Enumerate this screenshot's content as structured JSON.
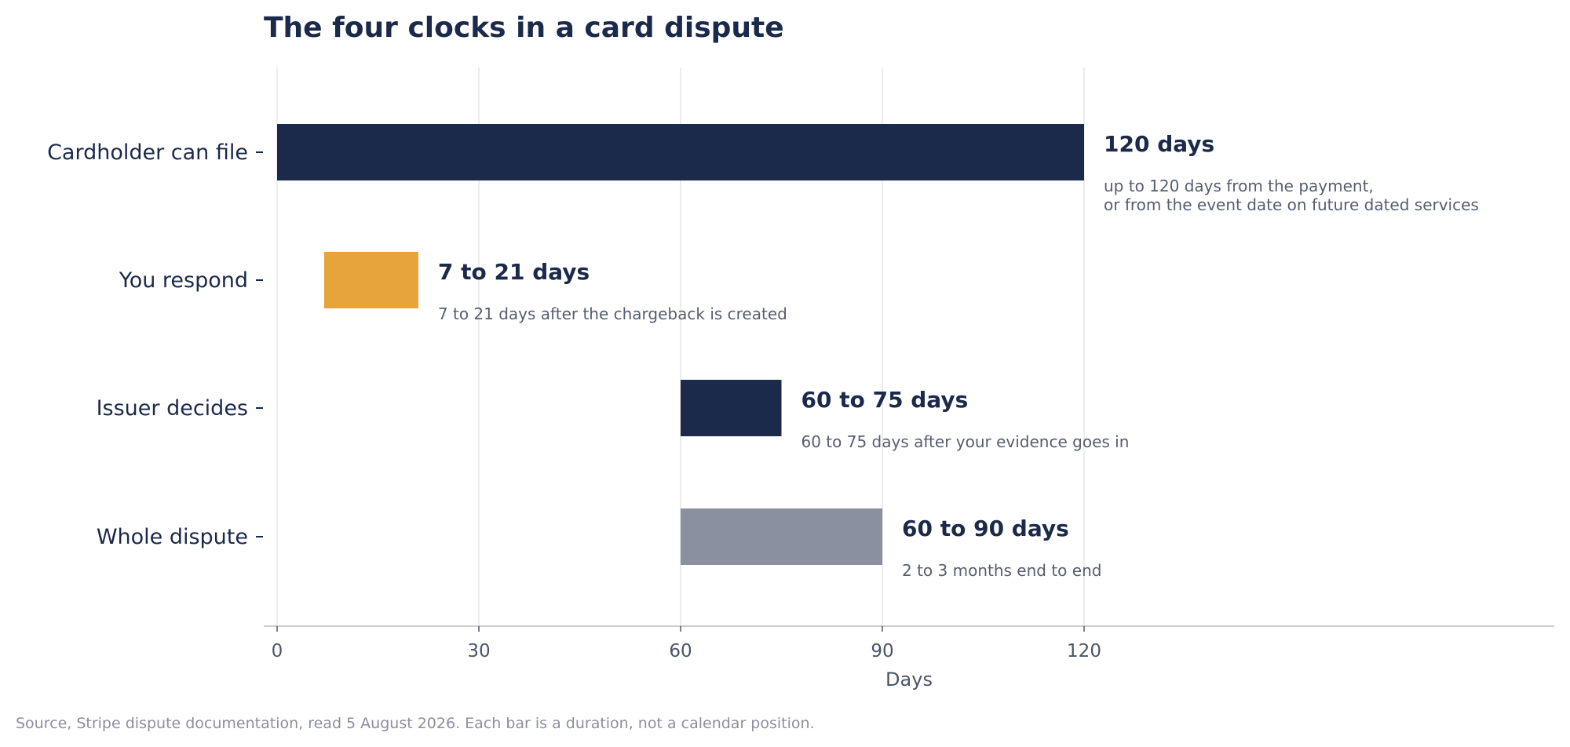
{
  "chart_data": {
    "type": "bar",
    "orientation": "horizontal",
    "title": "The four clocks in a card dispute",
    "xlabel": "Days",
    "ylabel": "",
    "xlim": [
      0,
      190
    ],
    "xticks": [
      0,
      30,
      60,
      90,
      120
    ],
    "grid": true,
    "bars": [
      {
        "category": "Cardholder can file",
        "start": 0,
        "end": 120,
        "color": "#1b2a4a",
        "label": "120 days",
        "note": [
          "up to 120 days from the payment,",
          "or from the event date on future dated services"
        ]
      },
      {
        "category": "You respond",
        "start": 7,
        "end": 21,
        "color": "#e8a43c",
        "label": "7 to 21 days",
        "note": [
          "7 to 21 days after the chargeback is created"
        ]
      },
      {
        "category": "Issuer decides",
        "start": 60,
        "end": 75,
        "color": "#1b2a4a",
        "label": "60 to 75 days",
        "note": [
          "60 to 75 days after your evidence goes in"
        ]
      },
      {
        "category": "Whole dispute",
        "start": 60,
        "end": 90,
        "color": "#8a909f",
        "label": "60 to 90 days",
        "note": [
          "2 to 3 months end to end"
        ]
      }
    ],
    "source": "Source, Stripe dispute documentation, read 5 August 2026. Each bar is a duration, not a calendar position."
  }
}
